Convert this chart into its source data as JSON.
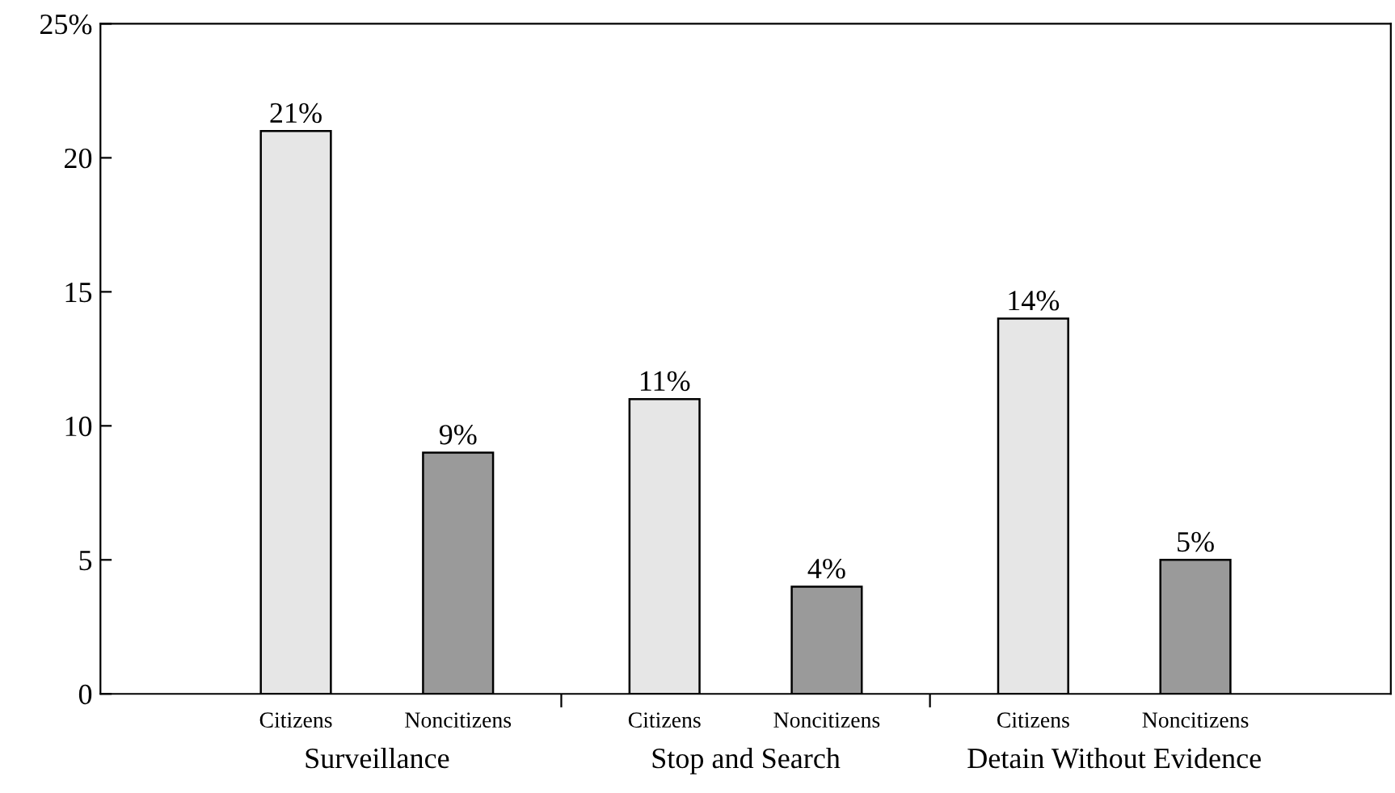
{
  "chart_data": {
    "type": "bar",
    "categories": [
      "Surveillance",
      "Stop and Search",
      "Detain Without Evidence"
    ],
    "series": [
      {
        "name": "Citizens",
        "color": "#e6e6e6",
        "values": [
          21,
          11,
          14
        ],
        "value_labels": [
          "21%",
          "11%",
          "14%"
        ]
      },
      {
        "name": "Noncitizens",
        "color": "#9a9a9a",
        "values": [
          9,
          4,
          5
        ],
        "value_labels": [
          "9%",
          "4%",
          "5%"
        ]
      }
    ],
    "ylim": [
      0,
      25
    ],
    "yticks": [
      0,
      5,
      10,
      15,
      20,
      {
        "value": 25,
        "label": "25%"
      }
    ],
    "grid": false,
    "legend": false
  }
}
